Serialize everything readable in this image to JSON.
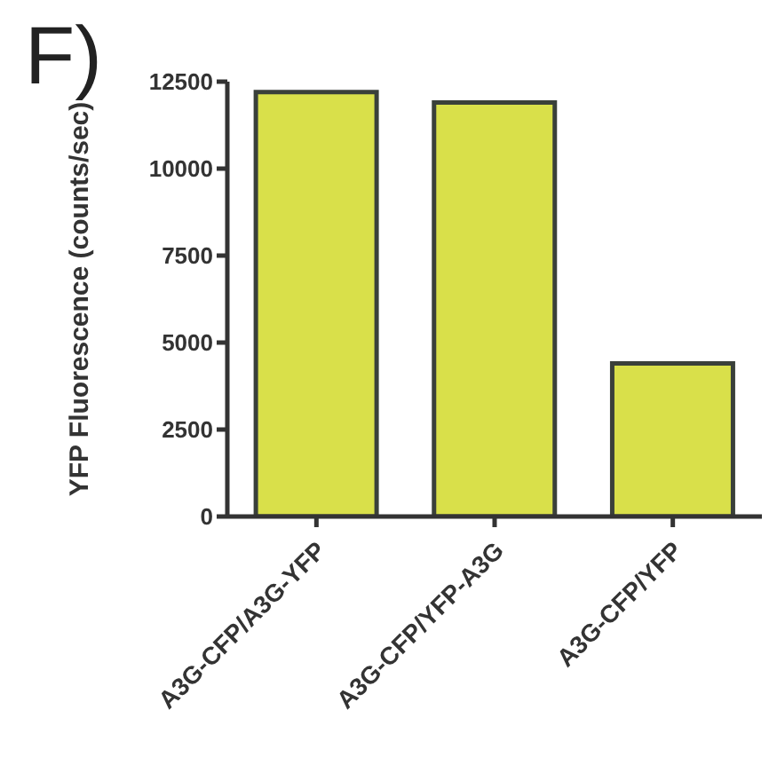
{
  "chart_data": {
    "type": "bar",
    "ylabel": "YFP Fluorescence (counts/sec)",
    "annotations": [
      "F)"
    ],
    "categories": [
      "A3G-CFP/A3G-YFP",
      "A3G-CFP/YFP-A3G",
      "A3G-CFP/YFP"
    ],
    "values": [
      12200,
      11900,
      4400
    ],
    "color": "#d9e04a",
    "ylim": [
      0,
      12500
    ],
    "yticks": [
      0,
      2500,
      5000,
      7500,
      10000,
      12500
    ],
    "grid": false
  }
}
